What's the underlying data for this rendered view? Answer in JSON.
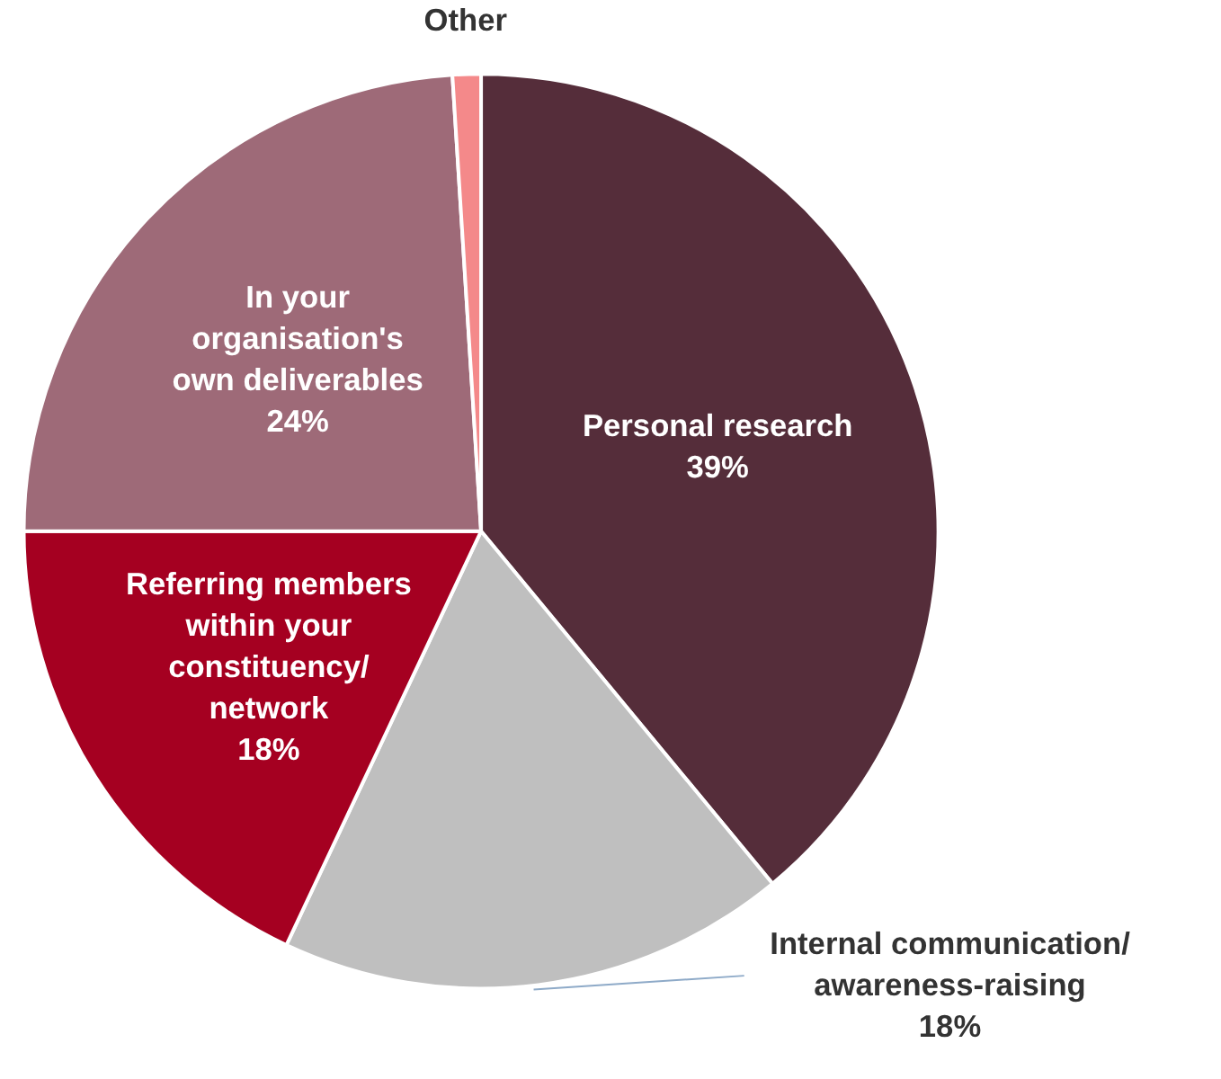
{
  "chart_data": {
    "type": "pie",
    "categories": [
      "Personal research",
      "Internal communication/ awareness-raising",
      "Referring members within your constituency/ network",
      "In your organisation's own deliverables",
      "Other"
    ],
    "values": [
      39,
      18,
      18,
      24,
      1
    ],
    "value_labels": [
      "39%",
      "18%",
      "18%",
      "24%",
      null
    ],
    "colors": [
      "#552d3a",
      "#bfbfbf",
      "#a50021",
      "#9e6a78",
      "#f4898a"
    ]
  }
}
